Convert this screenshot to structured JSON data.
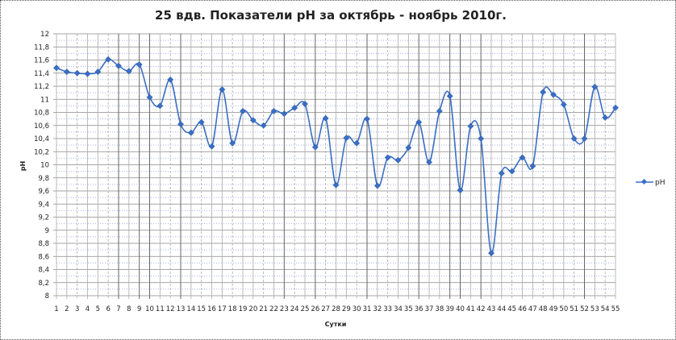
{
  "chart_data": {
    "type": "line",
    "title": "25 вдв. Показатели pH за октябрь - ноябрь 2010г.",
    "xlabel": "Сутки",
    "ylabel": "pH",
    "ylim": [
      8,
      12
    ],
    "ytick_step": 0.2,
    "yticks": [
      "8",
      "8,2",
      "8,4",
      "8,6",
      "8,8",
      "9",
      "9,2",
      "9,4",
      "9,6",
      "9,8",
      "10",
      "10,2",
      "10,4",
      "10,6",
      "10,8",
      "11",
      "11,2",
      "11,4",
      "11,6",
      "11,8",
      "12"
    ],
    "grid": true,
    "smooth": true,
    "legend_position": "right",
    "x": [
      1,
      2,
      3,
      4,
      5,
      6,
      7,
      8,
      9,
      10,
      11,
      12,
      13,
      14,
      15,
      16,
      17,
      18,
      19,
      20,
      21,
      22,
      23,
      24,
      25,
      26,
      27,
      28,
      29,
      30,
      31,
      32,
      33,
      34,
      35,
      36,
      37,
      38,
      39,
      40,
      41,
      42,
      43,
      44,
      45,
      46,
      47,
      48,
      49,
      50,
      51,
      52,
      53,
      54,
      55
    ],
    "series": [
      {
        "name": "pH",
        "color": "#3a6fc4",
        "marker": "diamond",
        "values": [
          11.48,
          11.42,
          11.4,
          11.39,
          11.42,
          11.61,
          11.51,
          11.43,
          11.53,
          11.03,
          10.9,
          11.3,
          10.62,
          10.49,
          10.65,
          10.28,
          11.15,
          10.33,
          10.82,
          10.68,
          10.6,
          10.82,
          10.78,
          10.87,
          10.93,
          10.27,
          10.71,
          9.69,
          10.41,
          10.33,
          10.7,
          9.68,
          10.11,
          10.07,
          10.26,
          10.65,
          10.04,
          10.82,
          11.05,
          9.61,
          10.59,
          10.4,
          8.65,
          9.87,
          9.9,
          10.11,
          9.98,
          11.11,
          11.07,
          10.92,
          10.4,
          10.4,
          11.19,
          10.72,
          10.87
        ]
      }
    ]
  }
}
